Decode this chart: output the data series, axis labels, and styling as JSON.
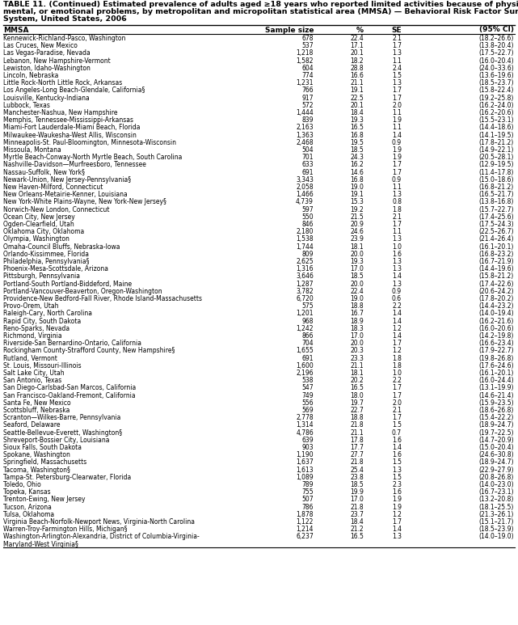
{
  "title_line1": "TABLE 11. (Continued) Estimated prevalence of adults aged ≥18 years who reported limited activities because of physical,",
  "title_line2": "mental, or emotional problems, by metropolitan and micropolitan statistical area (MMSA) — Behavioral Risk Factor Surveillance",
  "title_line3": "System, United States, 2006",
  "col_headers": [
    "MMSA",
    "Sample size",
    "%",
    "SE",
    "(95% CI)"
  ],
  "rows": [
    [
      "Kennewick-Richland-Pasco, Washington",
      "678",
      "22.4",
      "2.1",
      "(18.2–26.6)"
    ],
    [
      "Las Cruces, New Mexico",
      "537",
      "17.1",
      "1.7",
      "(13.8–20.4)"
    ],
    [
      "Las Vegas-Paradise, Nevada",
      "1,218",
      "20.1",
      "1.3",
      "(17.5–22.7)"
    ],
    [
      "Lebanon, New Hampshire-Vermont",
      "1,582",
      "18.2",
      "1.1",
      "(16.0–20.4)"
    ],
    [
      "Lewiston, Idaho-Washington",
      "604",
      "28.8",
      "2.4",
      "(24.0–33.6)"
    ],
    [
      "Lincoln, Nebraska",
      "774",
      "16.6",
      "1.5",
      "(13.6–19.6)"
    ],
    [
      "Little Rock-North Little Rock, Arkansas",
      "1,231",
      "21.1",
      "1.3",
      "(18.5–23.7)"
    ],
    [
      "Los Angeles-Long Beach-Glendale, California§",
      "766",
      "19.1",
      "1.7",
      "(15.8–22.4)"
    ],
    [
      "Louisville, Kentucky-Indiana",
      "917",
      "22.5",
      "1.7",
      "(19.2–25.8)"
    ],
    [
      "Lubbock, Texas",
      "572",
      "20.1",
      "2.0",
      "(16.2–24.0)"
    ],
    [
      "Manchester-Nashua, New Hampshire",
      "1,444",
      "18.4",
      "1.1",
      "(16.2–20.6)"
    ],
    [
      "Memphis, Tennessee-Mississippi-Arkansas",
      "839",
      "19.3",
      "1.9",
      "(15.5–23.1)"
    ],
    [
      "Miami-Fort Lauderdale-Miami Beach, Florida",
      "2,163",
      "16.5",
      "1.1",
      "(14.4–18.6)"
    ],
    [
      "Milwaukee-Waukesha-West Allis, Wisconsin",
      "1,363",
      "16.8",
      "1.4",
      "(14.1–19.5)"
    ],
    [
      "Minneapolis-St. Paul-Bloomington, Minnesota-Wisconsin",
      "2,468",
      "19.5",
      "0.9",
      "(17.8–21.2)"
    ],
    [
      "Missoula, Montana",
      "504",
      "18.5",
      "1.9",
      "(14.9–22.1)"
    ],
    [
      "Myrtle Beach-Conway-North Myrtle Beach, South Carolina",
      "701",
      "24.3",
      "1.9",
      "(20.5–28.1)"
    ],
    [
      "Nashville-Davidson—Murfreesboro, Tennessee",
      "633",
      "16.2",
      "1.7",
      "(12.9–19.5)"
    ],
    [
      "Nassau-Suffolk, New York§",
      "691",
      "14.6",
      "1.7",
      "(11.4–17.8)"
    ],
    [
      "Newark-Union, New Jersey-Pennsylvania§",
      "3,343",
      "16.8",
      "0.9",
      "(15.0–18.6)"
    ],
    [
      "New Haven-Milford, Connecticut",
      "2,058",
      "19.0",
      "1.1",
      "(16.8–21.2)"
    ],
    [
      "New Orleans-Metairie-Kenner, Louisiana",
      "1,466",
      "19.1",
      "1.3",
      "(16.5–21.7)"
    ],
    [
      "New York-White Plains-Wayne, New York-New Jersey§",
      "4,739",
      "15.3",
      "0.8",
      "(13.8–16.8)"
    ],
    [
      "Norwich-New London, Connecticut",
      "597",
      "19.2",
      "1.8",
      "(15.7–22.7)"
    ],
    [
      "Ocean City, New Jersey",
      "550",
      "21.5",
      "2.1",
      "(17.4–25.6)"
    ],
    [
      "Ogden-Clearfield, Utah",
      "846",
      "20.9",
      "1.7",
      "(17.5–24.3)"
    ],
    [
      "Oklahoma City, Oklahoma",
      "2,180",
      "24.6",
      "1.1",
      "(22.5–26.7)"
    ],
    [
      "Olympia, Washington",
      "1,538",
      "23.9",
      "1.3",
      "(21.4–26.4)"
    ],
    [
      "Omaha-Council Bluffs, Nebraska-Iowa",
      "1,744",
      "18.1",
      "1.0",
      "(16.1–20.1)"
    ],
    [
      "Orlando-Kissimmee, Florida",
      "809",
      "20.0",
      "1.6",
      "(16.8–23.2)"
    ],
    [
      "Philadelphia, Pennsylvania§",
      "2,625",
      "19.3",
      "1.3",
      "(16.7–21.9)"
    ],
    [
      "Phoenix-Mesa-Scottsdale, Arizona",
      "1,316",
      "17.0",
      "1.3",
      "(14.4–19.6)"
    ],
    [
      "Pittsburgh, Pennsylvania",
      "3,646",
      "18.5",
      "1.4",
      "(15.8–21.2)"
    ],
    [
      "Portland-South Portland-Biddeford, Maine",
      "1,287",
      "20.0",
      "1.3",
      "(17.4–22.6)"
    ],
    [
      "Portland-Vancouver-Beaverton, Oregon-Washington",
      "3,782",
      "22.4",
      "0.9",
      "(20.6–24.2)"
    ],
    [
      "Providence-New Bedford-Fall River, Rhode Island-Massachusetts",
      "6,720",
      "19.0",
      "0.6",
      "(17.8–20.2)"
    ],
    [
      "Provo-Orem, Utah",
      "575",
      "18.8",
      "2.2",
      "(14.4–23.2)"
    ],
    [
      "Raleigh-Cary, North Carolina",
      "1,201",
      "16.7",
      "1.4",
      "(14.0–19.4)"
    ],
    [
      "Rapid City, South Dakota",
      "968",
      "18.9",
      "1.4",
      "(16.2–21.6)"
    ],
    [
      "Reno-Sparks, Nevada",
      "1,242",
      "18.3",
      "1.2",
      "(16.0–20.6)"
    ],
    [
      "Richmond, Virginia",
      "866",
      "17.0",
      "1.4",
      "(14.2–19.8)"
    ],
    [
      "Riverside-San Bernardino-Ontario, California",
      "704",
      "20.0",
      "1.7",
      "(16.6–23.4)"
    ],
    [
      "Rockingham County-Strafford County, New Hampshire§",
      "1,655",
      "20.3",
      "1.2",
      "(17.9–22.7)"
    ],
    [
      "Rutland, Vermont",
      "691",
      "23.3",
      "1.8",
      "(19.8–26.8)"
    ],
    [
      "St. Louis, Missouri-Illinois",
      "1,600",
      "21.1",
      "1.8",
      "(17.6–24.6)"
    ],
    [
      "Salt Lake City, Utah",
      "2,196",
      "18.1",
      "1.0",
      "(16.1–20.1)"
    ],
    [
      "San Antonio, Texas",
      "538",
      "20.2",
      "2.2",
      "(16.0–24.4)"
    ],
    [
      "San Diego-Carlsbad-San Marcos, California",
      "547",
      "16.5",
      "1.7",
      "(13.1–19.9)"
    ],
    [
      "San Francisco-Oakland-Fremont, California",
      "749",
      "18.0",
      "1.7",
      "(14.6–21.4)"
    ],
    [
      "Santa Fe, New Mexico",
      "556",
      "19.7",
      "2.0",
      "(15.9–23.5)"
    ],
    [
      "Scottsbluff, Nebraska",
      "569",
      "22.7",
      "2.1",
      "(18.6–26.8)"
    ],
    [
      "Scranton—Wilkes-Barre, Pennsylvania",
      "2,778",
      "18.8",
      "1.7",
      "(15.4–22.2)"
    ],
    [
      "Seaford, Delaware",
      "1,314",
      "21.8",
      "1.5",
      "(18.9–24.7)"
    ],
    [
      "Seattle-Bellevue-Everett, Washington§",
      "4,786",
      "21.1",
      "0.7",
      "(19.7–22.5)"
    ],
    [
      "Shreveport-Bossier City, Louisiana",
      "639",
      "17.8",
      "1.6",
      "(14.7–20.9)"
    ],
    [
      "Sioux Falls, South Dakota",
      "903",
      "17.7",
      "1.4",
      "(15.0–20.4)"
    ],
    [
      "Spokane, Washington",
      "1,190",
      "27.7",
      "1.6",
      "(24.6–30.8)"
    ],
    [
      "Springfield, Massachusetts",
      "1,637",
      "21.8",
      "1.5",
      "(18.9–24.7)"
    ],
    [
      "Tacoma, Washington§",
      "1,613",
      "25.4",
      "1.3",
      "(22.9–27.9)"
    ],
    [
      "Tampa-St. Petersburg-Clearwater, Florida",
      "1,089",
      "23.8",
      "1.5",
      "(20.8–26.8)"
    ],
    [
      "Toledo, Ohio",
      "789",
      "18.5",
      "2.3",
      "(14.0–23.0)"
    ],
    [
      "Topeka, Kansas",
      "755",
      "19.9",
      "1.6",
      "(16.7–23.1)"
    ],
    [
      "Trenton-Ewing, New Jersey",
      "507",
      "17.0",
      "1.9",
      "(13.2–20.8)"
    ],
    [
      "Tucson, Arizona",
      "786",
      "21.8",
      "1.9",
      "(18.1–25.5)"
    ],
    [
      "Tulsa, Oklahoma",
      "1,878",
      "23.7",
      "1.2",
      "(21.3–26.1)"
    ],
    [
      "Virginia Beach-Norfolk-Newport News, Virginia-North Carolina",
      "1,122",
      "18.4",
      "1.7",
      "(15.1–21.7)"
    ],
    [
      "Warren-Troy-Farmington Hills, Michigan§",
      "1,214",
      "21.2",
      "1.4",
      "(18.5–23.9)"
    ],
    [
      "Washington-Arlington-Alexandria, District of Columbia-Virginia-",
      "6,237",
      "16.5",
      "1.3",
      "(14.0–19.0)"
    ],
    [
      "Maryland-West Virginia§",
      "",
      "",
      "",
      ""
    ]
  ],
  "bg_color": "#ffffff",
  "font_size": 5.5,
  "header_font_size": 6.5,
  "title_font_size": 6.8
}
